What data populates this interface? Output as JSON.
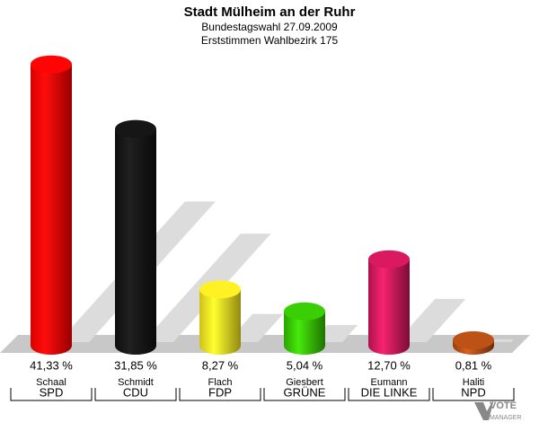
{
  "chart_data": {
    "type": "bar",
    "title": "Stadt Mülheim an der Ruhr",
    "subtitle": "Bundestagswahl 27.09.2009",
    "subtitle2": "Erststimmen Wahlbezirk 175",
    "categories": [
      "SPD",
      "CDU",
      "FDP",
      "GRÜNE",
      "DIE LINKE",
      "NPD"
    ],
    "candidates": [
      "Schaal",
      "Schmidt",
      "Flach",
      "Giesbert",
      "Eumann",
      "Haliti"
    ],
    "values": [
      41.33,
      31.85,
      8.27,
      5.04,
      12.7,
      0.81
    ],
    "value_labels": [
      "41,33 %",
      "31,85 %",
      "8,27 %",
      "5,04 %",
      "12,70 %",
      "0,81 %"
    ],
    "colors": [
      "#ff0000",
      "#111111",
      "#f2e21e",
      "#33c000",
      "#cc1458",
      "#b04a12"
    ],
    "logo": [
      "VOTE",
      "MANAGER"
    ]
  }
}
